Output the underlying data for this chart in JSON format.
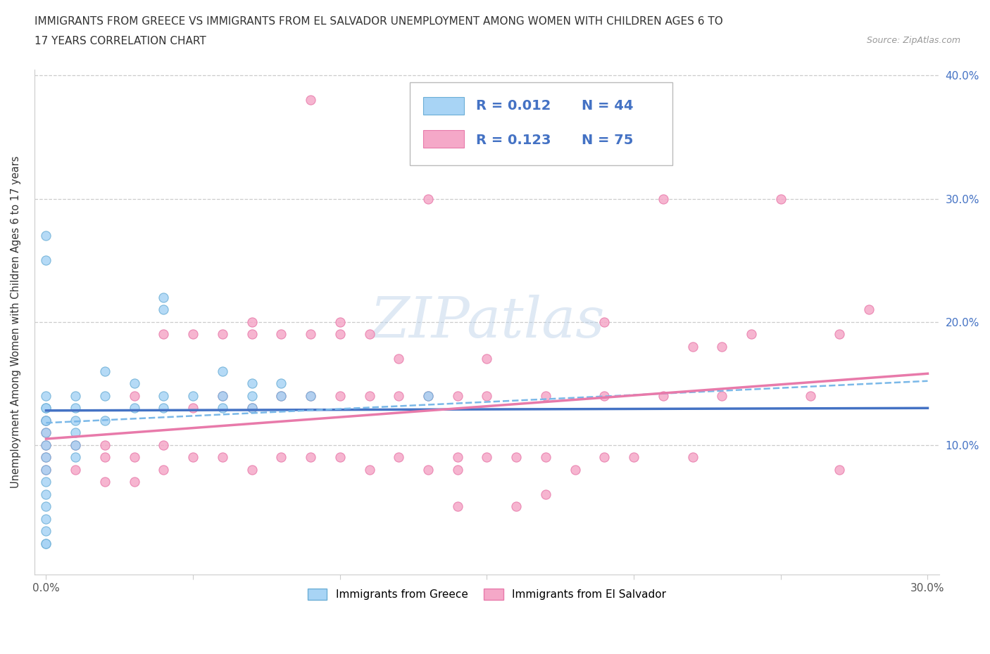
{
  "title_line1": "IMMIGRANTS FROM GREECE VS IMMIGRANTS FROM EL SALVADOR UNEMPLOYMENT AMONG WOMEN WITH CHILDREN AGES 6 TO",
  "title_line2": "17 YEARS CORRELATION CHART",
  "source": "Source: ZipAtlas.com",
  "ylabel": "Unemployment Among Women with Children Ages 6 to 17 years",
  "xlim": [
    0.0,
    0.3
  ],
  "ylim": [
    0.0,
    0.4
  ],
  "greece_color": "#a8d4f5",
  "greece_edge": "#6baed6",
  "greece_line_color": "#4472c4",
  "salvador_color": "#f5a8c8",
  "salvador_edge": "#e87aaa",
  "salvador_line_color": "#e87aaa",
  "greece_R": 0.012,
  "greece_N": 44,
  "salvador_R": 0.123,
  "salvador_N": 75,
  "legend_color": "#4472c4",
  "watermark_text": "ZIPatlas",
  "greece_x": [
    0.0,
    0.0,
    0.0,
    0.0,
    0.0,
    0.0,
    0.0,
    0.0,
    0.0,
    0.0,
    0.0,
    0.0,
    0.0,
    0.0,
    0.0,
    0.01,
    0.01,
    0.01,
    0.01,
    0.01,
    0.01,
    0.02,
    0.02,
    0.02,
    0.03,
    0.03,
    0.04,
    0.04,
    0.04,
    0.04,
    0.05,
    0.06,
    0.06,
    0.06,
    0.07,
    0.07,
    0.07,
    0.08,
    0.08,
    0.09,
    0.13,
    0.0,
    0.0,
    0.0
  ],
  "greece_y": [
    0.06,
    0.07,
    0.08,
    0.09,
    0.1,
    0.11,
    0.12,
    0.12,
    0.13,
    0.13,
    0.14,
    0.05,
    0.04,
    0.03,
    0.02,
    0.11,
    0.12,
    0.13,
    0.14,
    0.1,
    0.09,
    0.12,
    0.14,
    0.16,
    0.13,
    0.15,
    0.14,
    0.21,
    0.13,
    0.22,
    0.14,
    0.13,
    0.14,
    0.16,
    0.14,
    0.15,
    0.13,
    0.14,
    0.15,
    0.14,
    0.14,
    0.25,
    0.27,
    0.02
  ],
  "salvador_x": [
    0.0,
    0.0,
    0.0,
    0.0,
    0.0,
    0.01,
    0.01,
    0.02,
    0.02,
    0.02,
    0.03,
    0.03,
    0.03,
    0.04,
    0.04,
    0.04,
    0.05,
    0.05,
    0.05,
    0.06,
    0.06,
    0.06,
    0.07,
    0.07,
    0.07,
    0.07,
    0.08,
    0.08,
    0.08,
    0.09,
    0.09,
    0.09,
    0.1,
    0.1,
    0.1,
    0.1,
    0.11,
    0.11,
    0.11,
    0.12,
    0.12,
    0.12,
    0.13,
    0.13,
    0.14,
    0.14,
    0.14,
    0.15,
    0.15,
    0.16,
    0.17,
    0.17,
    0.18,
    0.19,
    0.19,
    0.2,
    0.21,
    0.22,
    0.22,
    0.23,
    0.23,
    0.24,
    0.25,
    0.26,
    0.27,
    0.27,
    0.28,
    0.09,
    0.13,
    0.15,
    0.19,
    0.21,
    0.14,
    0.16,
    0.17
  ],
  "salvador_y": [
    0.08,
    0.09,
    0.1,
    0.11,
    0.12,
    0.08,
    0.1,
    0.07,
    0.09,
    0.1,
    0.07,
    0.09,
    0.14,
    0.08,
    0.1,
    0.19,
    0.09,
    0.13,
    0.19,
    0.09,
    0.14,
    0.19,
    0.08,
    0.13,
    0.19,
    0.2,
    0.09,
    0.14,
    0.19,
    0.09,
    0.14,
    0.19,
    0.09,
    0.14,
    0.19,
    0.2,
    0.08,
    0.14,
    0.19,
    0.09,
    0.14,
    0.17,
    0.08,
    0.14,
    0.08,
    0.09,
    0.14,
    0.09,
    0.14,
    0.09,
    0.09,
    0.14,
    0.08,
    0.09,
    0.14,
    0.09,
    0.14,
    0.09,
    0.18,
    0.14,
    0.18,
    0.19,
    0.3,
    0.14,
    0.08,
    0.19,
    0.21,
    0.38,
    0.3,
    0.17,
    0.2,
    0.3,
    0.05,
    0.05,
    0.06
  ],
  "greece_trend_start_y": 0.128,
  "greece_trend_end_y": 0.13,
  "salvador_trend_start_y": 0.105,
  "salvador_trend_end_y": 0.158
}
